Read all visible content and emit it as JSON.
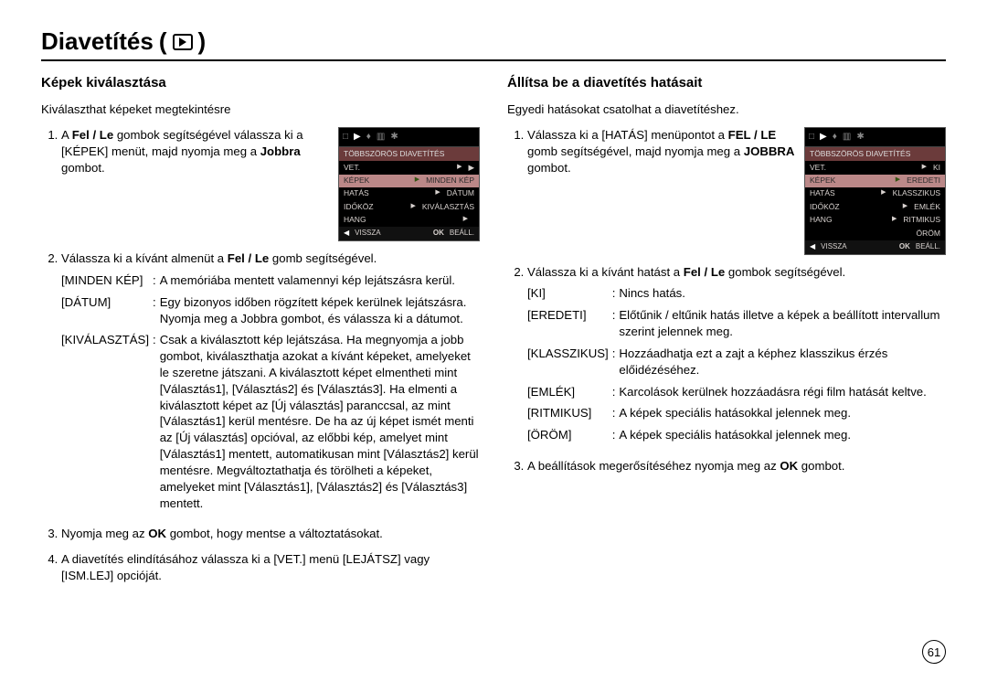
{
  "title": "Diavetítés",
  "page_number": "61",
  "left": {
    "heading": "Képek kiválasztása",
    "intro": "Kiválaszthat képeket megtekintésre",
    "step1_pre": "A ",
    "step1_b1": "Fel / Le",
    "step1_mid": " gombok segítségével válassza ki a [KÉPEK] menüt, majd nyomja meg a ",
    "step1_b2": "Jobbra",
    "step1_post": " gombot.",
    "step2_pre": "Válassza ki a kívánt almenüt a ",
    "step2_b": "Fel / Le",
    "step2_post": " gomb segítségével.",
    "def1_term": "[MINDEN KÉP]",
    "def1_def": "A memóriába mentett valamennyi kép lejátszásra kerül.",
    "def2_term": "[DÁTUM]",
    "def2_def": "Egy bizonyos időben rögzített képek kerülnek lejátszásra. Nyomja meg a Jobbra gombot, és válassza ki a dátumot.",
    "def3_term": "[KIVÁLASZTÁS]",
    "def3_def": "Csak a kiválasztott kép lejátszása. Ha megnyomja a jobb gombot, kiválaszthatja azokat a kívánt képeket, amelyeket le szeretne játszani. A kiválasztott képet elmentheti mint [Választás1], [Választás2] és [Választás3]. Ha elmenti a kiválasztott képet az [Új választás] paranccsal, az mint [Választás1] kerül mentésre. De ha az új képet ismét menti az [Új választás] opcióval, az előbbi kép, amelyet mint [Választás1] mentett, automatikusan mint [Választás2] kerül mentésre. Megváltoztathatja és törölheti a képeket, amelyeket mint [Választás1], [Választás2] és [Választás3] mentett.",
    "step3_pre": "Nyomja meg az ",
    "step3_b": "OK",
    "step3_post": " gombot, hogy mentse a változtatásokat.",
    "step4": "A diavetítés elindításához válassza ki a [VET.] menü [LEJÁTSZ] vagy [ISM.LEJ] opcióját.",
    "ui": {
      "header": "TÖBBSZÖRÖS DIAVETÍTÉS",
      "rows": [
        {
          "l": "VET.",
          "r": "▶",
          "sel": false
        },
        {
          "l": "KÉPEK",
          "r": "MINDEN KÉP",
          "sel": true
        },
        {
          "l": "HATÁS",
          "r": "DÁTUM",
          "sel": false
        },
        {
          "l": "IDŐKÖZ",
          "r": "KIVÁLASZTÁS",
          "sel": false
        },
        {
          "l": "HANG",
          "r": "",
          "sel": false
        }
      ],
      "foot_back": "VISSZA",
      "foot_ok": "OK",
      "foot_set": "BEÁLL."
    }
  },
  "right": {
    "heading": "Állítsa be a diavetítés hatásait",
    "intro": "Egyedi hatásokat csatolhat a diavetítéshez.",
    "step1_pre": "Válassza ki a [HATÁS] menüpontot a ",
    "step1_b1": "FEL / LE",
    "step1_mid": " gomb segítségével, majd nyomja meg a ",
    "step1_b2": "JOBBRA",
    "step1_post": " gombot.",
    "step2_pre": "Válassza ki a kívánt hatást a ",
    "step2_b": "Fel / Le",
    "step2_post": " gombok segítségével.",
    "def1_term": "[KI]",
    "def1_def": "Nincs hatás.",
    "def2_term": "[EREDETI]",
    "def2_def": "Előtűnik / eltűnik hatás illetve a képek a beállított intervallum szerint jelennek meg.",
    "def3_term": "[KLASSZIKUS]",
    "def3_def": "Hozzáadhatja ezt a zajt a képhez klasszikus érzés előidézéséhez.",
    "def4_term": "[EMLÉK]",
    "def4_def": "Karcolások kerülnek hozzáadásra régi film hatását keltve.",
    "def5_term": "[RITMIKUS]",
    "def5_def": "A képek speciális hatásokkal jelennek meg.",
    "def6_term": "[ÖRÖM]",
    "def6_def": "A képek speciális hatásokkal jelennek meg.",
    "step3_pre": "A beállítások megerősítéséhez nyomja meg az ",
    "step3_b": "OK",
    "step3_post": " gombot.",
    "ui": {
      "header": "TÖBBSZÖRÖS DIAVETÍTÉS",
      "rows": [
        {
          "l": "VET.",
          "r": "KI",
          "sel": false
        },
        {
          "l": "KÉPEK",
          "r": "EREDETI",
          "sel": true
        },
        {
          "l": "HATÁS",
          "r": "KLASSZIKUS",
          "sel": false
        },
        {
          "l": "IDŐKÖZ",
          "r": "EMLÉK",
          "sel": false
        },
        {
          "l": "HANG",
          "r": "RITMIKUS",
          "sel": false
        },
        {
          "l": "",
          "r": "ÖRÖM",
          "sel": false
        }
      ],
      "foot_back": "VISSZA",
      "foot_ok": "OK",
      "foot_set": "BEÁLL."
    }
  }
}
